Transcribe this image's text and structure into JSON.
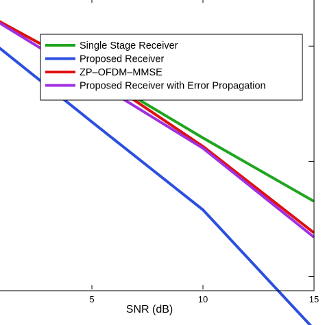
{
  "chart_data": {
    "type": "line",
    "title": "",
    "xlabel": "SNR (dB)",
    "ylabel": "",
    "xlim": [
      1,
      15
    ],
    "x_ticks": [
      5,
      10,
      15
    ],
    "y_scale": "log",
    "y_visible_range": [
      0.001,
      0.2
    ],
    "grid": false,
    "legend_position": "top-right",
    "x": [
      0,
      5,
      10,
      15
    ],
    "series": [
      {
        "name": "Single Stage Receiver",
        "color": "#1fa51f",
        "values": [
          0.2,
          0.06,
          0.016,
          0.0045
        ]
      },
      {
        "name": "Proposed Receiver",
        "color": "#2b4fe0",
        "values": [
          0.13,
          0.022,
          0.0038,
          0.00035
        ]
      },
      {
        "name": "ZP–OFDM–MMSE",
        "color": "#e01010",
        "values": [
          0.2,
          0.06,
          0.0135,
          0.0024
        ]
      },
      {
        "name": "Proposed Receiver with Error Propagation",
        "color": "#a030e0",
        "values": [
          0.2,
          0.051,
          0.013,
          0.0022
        ]
      }
    ]
  }
}
